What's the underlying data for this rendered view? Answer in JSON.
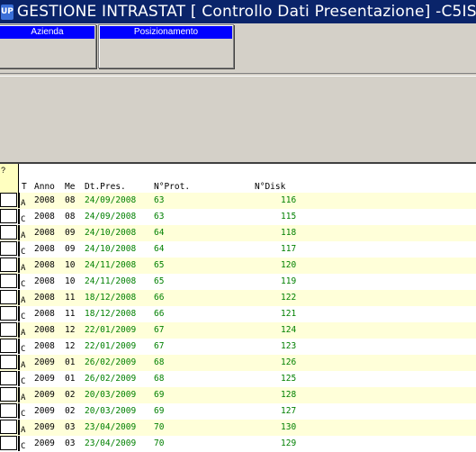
{
  "window": {
    "title": "GESTIONE INTRASTAT [ Controllo Dati Presentazione] -C5IS9",
    "icon_label": "UP"
  },
  "panels": {
    "azienda": "Azienda",
    "posizionamento": "Posizionamento"
  },
  "grid": {
    "corner_label": "?",
    "headers": {
      "t": "T",
      "anno": "Anno",
      "me": "Me",
      "dt_pres": "Dt.Pres.",
      "nprot": "N°Prot.",
      "ndisk": "N°Disk"
    },
    "rows": [
      {
        "t": "A",
        "anno": "2008",
        "me": "08",
        "dt": "24/09/2008",
        "prot": "63",
        "disk": "116"
      },
      {
        "t": "C",
        "anno": "2008",
        "me": "08",
        "dt": "24/09/2008",
        "prot": "63",
        "disk": "115"
      },
      {
        "t": "A",
        "anno": "2008",
        "me": "09",
        "dt": "24/10/2008",
        "prot": "64",
        "disk": "118"
      },
      {
        "t": "C",
        "anno": "2008",
        "me": "09",
        "dt": "24/10/2008",
        "prot": "64",
        "disk": "117"
      },
      {
        "t": "A",
        "anno": "2008",
        "me": "10",
        "dt": "24/11/2008",
        "prot": "65",
        "disk": "120"
      },
      {
        "t": "C",
        "anno": "2008",
        "me": "10",
        "dt": "24/11/2008",
        "prot": "65",
        "disk": "119"
      },
      {
        "t": "A",
        "anno": "2008",
        "me": "11",
        "dt": "18/12/2008",
        "prot": "66",
        "disk": "122"
      },
      {
        "t": "C",
        "anno": "2008",
        "me": "11",
        "dt": "18/12/2008",
        "prot": "66",
        "disk": "121"
      },
      {
        "t": "A",
        "anno": "2008",
        "me": "12",
        "dt": "22/01/2009",
        "prot": "67",
        "disk": "124"
      },
      {
        "t": "C",
        "anno": "2008",
        "me": "12",
        "dt": "22/01/2009",
        "prot": "67",
        "disk": "123"
      },
      {
        "t": "A",
        "anno": "2009",
        "me": "01",
        "dt": "26/02/2009",
        "prot": "68",
        "disk": "126"
      },
      {
        "t": "C",
        "anno": "2009",
        "me": "01",
        "dt": "26/02/2009",
        "prot": "68",
        "disk": "125"
      },
      {
        "t": "A",
        "anno": "2009",
        "me": "02",
        "dt": "20/03/2009",
        "prot": "69",
        "disk": "128"
      },
      {
        "t": "C",
        "anno": "2009",
        "me": "02",
        "dt": "20/03/2009",
        "prot": "69",
        "disk": "127"
      },
      {
        "t": "A",
        "anno": "2009",
        "me": "03",
        "dt": "23/04/2009",
        "prot": "70",
        "disk": "130"
      },
      {
        "t": "C",
        "anno": "2009",
        "me": "03",
        "dt": "23/04/2009",
        "prot": "70",
        "disk": "129"
      }
    ]
  }
}
